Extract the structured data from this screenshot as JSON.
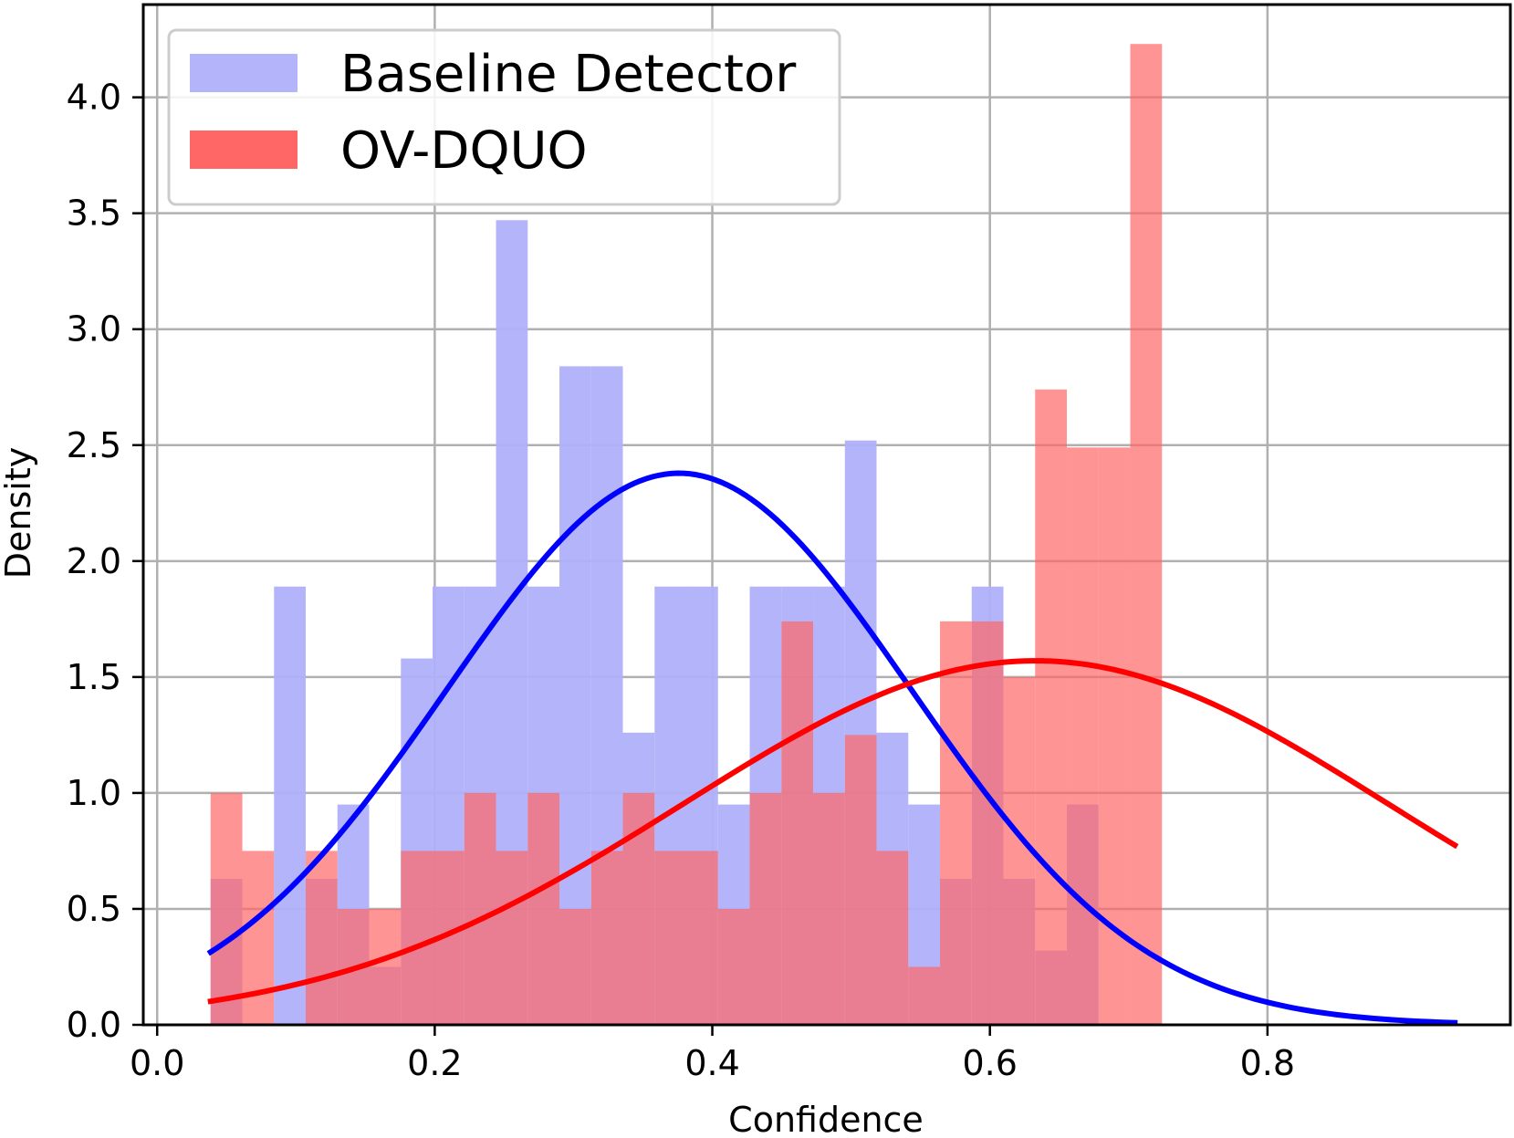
{
  "chart_data": {
    "type": "bar",
    "xlabel": "Confidence",
    "ylabel": "Density",
    "xlim": [
      -0.01,
      0.975
    ],
    "ylim": [
      0,
      4.4
    ],
    "grid": true,
    "legend_position": "top-left",
    "xticks": [
      "0.0",
      "0.2",
      "0.4",
      "0.6",
      "0.8"
    ],
    "yticks": [
      "0.0",
      "0.5",
      "1.0",
      "1.5",
      "2.0",
      "2.5",
      "3.0",
      "3.5",
      "4.0"
    ],
    "bin_width": 0.02285,
    "bin_start": 0.0385,
    "series": [
      {
        "name": "Baseline Detector",
        "color": "#b0b0fa",
        "values": [
          0.63,
          0.0,
          1.89,
          0.63,
          0.95,
          0.25,
          1.58,
          1.89,
          1.89,
          3.47,
          1.89,
          2.84,
          2.84,
          1.26,
          1.89,
          1.89,
          0.95,
          1.89,
          1.89,
          1.89,
          2.52,
          1.26,
          0.95,
          0.63,
          1.89,
          0.63,
          0.32,
          0.95,
          0.0,
          0.0
        ]
      },
      {
        "name": "OV-DQUO",
        "color": "#ff6666",
        "values": [
          1.0,
          0.75,
          0.0,
          0.75,
          0.5,
          0.5,
          0.75,
          0.75,
          1.0,
          0.75,
          1.0,
          0.5,
          0.75,
          1.0,
          0.75,
          0.75,
          0.5,
          1.0,
          1.74,
          1.0,
          1.25,
          0.75,
          0.25,
          1.74,
          1.74,
          1.5,
          2.74,
          2.49,
          2.49,
          4.23
        ]
      }
    ],
    "fit_curves": [
      {
        "series": "Baseline Detector",
        "color": "#0000ff",
        "mean": 0.376,
        "sd": 0.1677,
        "x_start": 0.0385,
        "x_end": 0.935
      },
      {
        "series": "OV-DQUO",
        "color": "#ff0000",
        "mean": 0.633,
        "sd": 0.2541,
        "x_start": 0.0385,
        "x_end": 0.935
      }
    ]
  }
}
